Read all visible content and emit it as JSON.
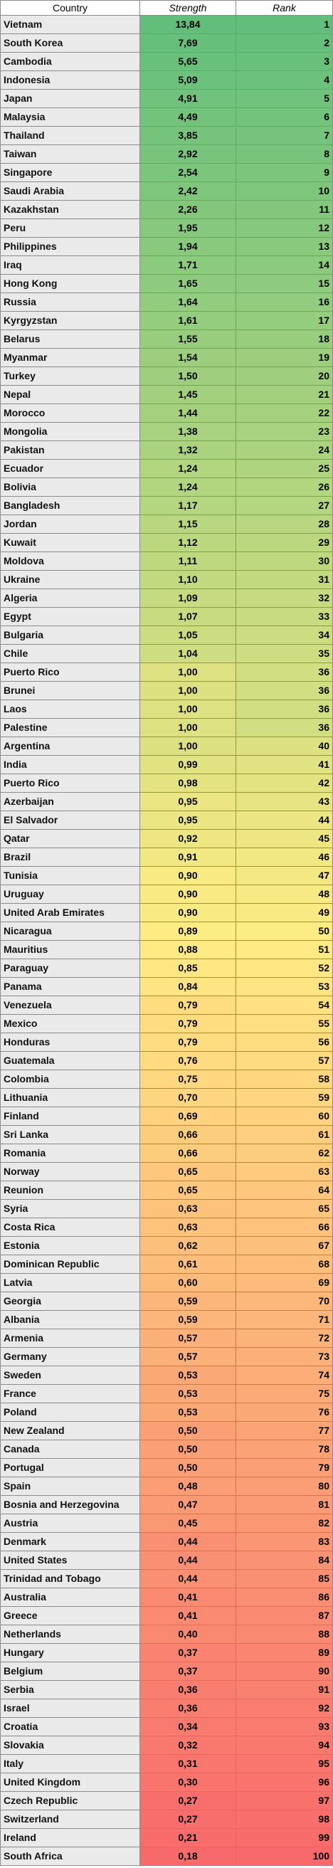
{
  "headers": {
    "country": "Country",
    "strength": "Strength",
    "rank": "Rank"
  },
  "colors": {
    "high": "#63be7b",
    "mid": "#ffeb84",
    "low": "#f8696b"
  },
  "rows": [
    {
      "country": "Vietnam",
      "strength": "13,84",
      "rank": "1"
    },
    {
      "country": "South Korea",
      "strength": "7,69",
      "rank": "2"
    },
    {
      "country": "Cambodia",
      "strength": "5,65",
      "rank": "3"
    },
    {
      "country": "Indonesia",
      "strength": "5,09",
      "rank": "4"
    },
    {
      "country": "Japan",
      "strength": "4,91",
      "rank": "5"
    },
    {
      "country": "Malaysia",
      "strength": "4,49",
      "rank": "6"
    },
    {
      "country": "Thailand",
      "strength": "3,85",
      "rank": "7"
    },
    {
      "country": "Taiwan",
      "strength": "2,92",
      "rank": "8"
    },
    {
      "country": "Singapore",
      "strength": "2,54",
      "rank": "9"
    },
    {
      "country": "Saudi Arabia",
      "strength": "2,42",
      "rank": "10"
    },
    {
      "country": "Kazakhstan",
      "strength": "2,26",
      "rank": "11"
    },
    {
      "country": "Peru",
      "strength": "1,95",
      "rank": "12"
    },
    {
      "country": "Philippines",
      "strength": "1,94",
      "rank": "13"
    },
    {
      "country": "Iraq",
      "strength": "1,71",
      "rank": "14"
    },
    {
      "country": "Hong Kong",
      "strength": "1,65",
      "rank": "15"
    },
    {
      "country": "Russia",
      "strength": "1,64",
      "rank": "16"
    },
    {
      "country": "Kyrgyzstan",
      "strength": "1,61",
      "rank": "17"
    },
    {
      "country": "Belarus",
      "strength": "1,55",
      "rank": "18"
    },
    {
      "country": "Myanmar",
      "strength": "1,54",
      "rank": "19"
    },
    {
      "country": "Turkey",
      "strength": "1,50",
      "rank": "20"
    },
    {
      "country": "Nepal",
      "strength": "1,45",
      "rank": "21"
    },
    {
      "country": "Morocco",
      "strength": "1,44",
      "rank": "22"
    },
    {
      "country": "Mongolia",
      "strength": "1,38",
      "rank": "23"
    },
    {
      "country": "Pakistan",
      "strength": "1,32",
      "rank": "24"
    },
    {
      "country": "Ecuador",
      "strength": "1,24",
      "rank": "25"
    },
    {
      "country": "Bolivia",
      "strength": "1,24",
      "rank": "26"
    },
    {
      "country": "Bangladesh",
      "strength": "1,17",
      "rank": "27"
    },
    {
      "country": "Jordan",
      "strength": "1,15",
      "rank": "28"
    },
    {
      "country": "Kuwait",
      "strength": "1,12",
      "rank": "29"
    },
    {
      "country": "Moldova",
      "strength": "1,11",
      "rank": "30"
    },
    {
      "country": "Ukraine",
      "strength": "1,10",
      "rank": "31"
    },
    {
      "country": "Algeria",
      "strength": "1,09",
      "rank": "32"
    },
    {
      "country": "Egypt",
      "strength": "1,07",
      "rank": "33"
    },
    {
      "country": "Bulgaria",
      "strength": "1,05",
      "rank": "34"
    },
    {
      "country": "Chile",
      "strength": "1,04",
      "rank": "35"
    },
    {
      "country": "Puerto Rico",
      "strength": "1,00",
      "rank": "36"
    },
    {
      "country": "Brunei",
      "strength": "1,00",
      "rank": "36"
    },
    {
      "country": "Laos",
      "strength": "1,00",
      "rank": "36"
    },
    {
      "country": "Palestine",
      "strength": "1,00",
      "rank": "36"
    },
    {
      "country": "Argentina",
      "strength": "1,00",
      "rank": "40"
    },
    {
      "country": "India",
      "strength": "0,99",
      "rank": "41"
    },
    {
      "country": "Puerto Rico",
      "strength": "0,98",
      "rank": "42"
    },
    {
      "country": "Azerbaijan",
      "strength": "0,95",
      "rank": "43"
    },
    {
      "country": "El Salvador",
      "strength": "0,95",
      "rank": "44"
    },
    {
      "country": "Qatar",
      "strength": "0,92",
      "rank": "45"
    },
    {
      "country": "Brazil",
      "strength": "0,91",
      "rank": "46"
    },
    {
      "country": "Tunisia",
      "strength": "0,90",
      "rank": "47"
    },
    {
      "country": "Uruguay",
      "strength": "0,90",
      "rank": "48"
    },
    {
      "country": "United Arab Emirates",
      "strength": "0,90",
      "rank": "49"
    },
    {
      "country": "Nicaragua",
      "strength": "0,89",
      "rank": "50"
    },
    {
      "country": "Mauritius",
      "strength": "0,88",
      "rank": "51"
    },
    {
      "country": "Paraguay",
      "strength": "0,85",
      "rank": "52"
    },
    {
      "country": "Panama",
      "strength": "0,84",
      "rank": "53"
    },
    {
      "country": "Venezuela",
      "strength": "0,79",
      "rank": "54"
    },
    {
      "country": "Mexico",
      "strength": "0,79",
      "rank": "55"
    },
    {
      "country": "Honduras",
      "strength": "0,79",
      "rank": "56"
    },
    {
      "country": "Guatemala",
      "strength": "0,76",
      "rank": "57"
    },
    {
      "country": "Colombia",
      "strength": "0,75",
      "rank": "58"
    },
    {
      "country": "Lithuania",
      "strength": "0,70",
      "rank": "59"
    },
    {
      "country": "Finland",
      "strength": "0,69",
      "rank": "60"
    },
    {
      "country": "Sri Lanka",
      "strength": "0,66",
      "rank": "61"
    },
    {
      "country": "Romania",
      "strength": "0,66",
      "rank": "62"
    },
    {
      "country": "Norway",
      "strength": "0,65",
      "rank": "63"
    },
    {
      "country": "Reunion",
      "strength": "0,65",
      "rank": "64"
    },
    {
      "country": "Syria",
      "strength": "0,63",
      "rank": "65"
    },
    {
      "country": "Costa Rica",
      "strength": "0,63",
      "rank": "66"
    },
    {
      "country": "Estonia",
      "strength": "0,62",
      "rank": "67"
    },
    {
      "country": "Dominican Republic",
      "strength": "0,61",
      "rank": "68"
    },
    {
      "country": "Latvia",
      "strength": "0,60",
      "rank": "69"
    },
    {
      "country": "Georgia",
      "strength": "0,59",
      "rank": "70"
    },
    {
      "country": "Albania",
      "strength": "0,59",
      "rank": "71"
    },
    {
      "country": "Armenia",
      "strength": "0,57",
      "rank": "72"
    },
    {
      "country": "Germany",
      "strength": "0,57",
      "rank": "73"
    },
    {
      "country": "Sweden",
      "strength": "0,53",
      "rank": "74"
    },
    {
      "country": "France",
      "strength": "0,53",
      "rank": "75"
    },
    {
      "country": "Poland",
      "strength": "0,53",
      "rank": "76"
    },
    {
      "country": "New Zealand",
      "strength": "0,50",
      "rank": "77"
    },
    {
      "country": "Canada",
      "strength": "0,50",
      "rank": "78"
    },
    {
      "country": "Portugal",
      "strength": "0,50",
      "rank": "79"
    },
    {
      "country": "Spain",
      "strength": "0,48",
      "rank": "80"
    },
    {
      "country": "Bosnia and Herzegovina",
      "strength": "0,47",
      "rank": "81"
    },
    {
      "country": "Austria",
      "strength": "0,45",
      "rank": "82"
    },
    {
      "country": "Denmark",
      "strength": "0,44",
      "rank": "83"
    },
    {
      "country": "United States",
      "strength": "0,44",
      "rank": "84"
    },
    {
      "country": "Trinidad and Tobago",
      "strength": "0,44",
      "rank": "85"
    },
    {
      "country": "Australia",
      "strength": "0,41",
      "rank": "86"
    },
    {
      "country": "Greece",
      "strength": "0,41",
      "rank": "87"
    },
    {
      "country": "Netherlands",
      "strength": "0,40",
      "rank": "88"
    },
    {
      "country": "Hungary",
      "strength": "0,37",
      "rank": "89"
    },
    {
      "country": "Belgium",
      "strength": "0,37",
      "rank": "90"
    },
    {
      "country": "Serbia",
      "strength": "0,36",
      "rank": "91"
    },
    {
      "country": "Israel",
      "strength": "0,36",
      "rank": "92"
    },
    {
      "country": "Croatia",
      "strength": "0,34",
      "rank": "93"
    },
    {
      "country": "Slovakia",
      "strength": "0,32",
      "rank": "94"
    },
    {
      "country": "Italy",
      "strength": "0,31",
      "rank": "95"
    },
    {
      "country": "United Kingdom",
      "strength": "0,30",
      "rank": "96"
    },
    {
      "country": "Czech Republic",
      "strength": "0,27",
      "rank": "97"
    },
    {
      "country": "Switzerland",
      "strength": "0,27",
      "rank": "98"
    },
    {
      "country": "Ireland",
      "strength": "0,21",
      "rank": "99"
    },
    {
      "country": "South Africa",
      "strength": "0,18",
      "rank": "100"
    }
  ]
}
